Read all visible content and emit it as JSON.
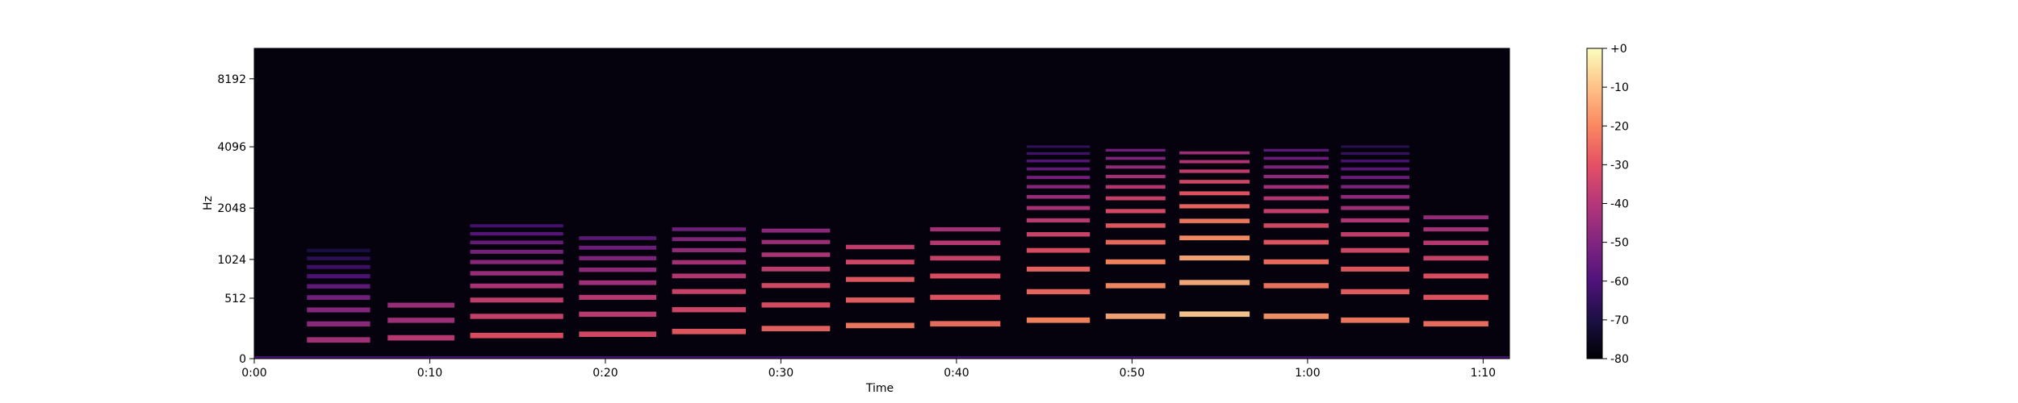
{
  "chart_data": {
    "type": "heatmap",
    "title": "",
    "xlabel": "Time",
    "ylabel": "Hz",
    "xlim": [
      0,
      71.5
    ],
    "ylim": [
      0,
      11025
    ],
    "y_scale": "mel",
    "x_ticks": [
      {
        "value": 0,
        "label": "0:00"
      },
      {
        "value": 10,
        "label": "0:10"
      },
      {
        "value": 20,
        "label": "0:20"
      },
      {
        "value": 30,
        "label": "0:30"
      },
      {
        "value": 40,
        "label": "0:40"
      },
      {
        "value": 50,
        "label": "0:50"
      },
      {
        "value": 60,
        "label": "1:00"
      },
      {
        "value": 70,
        "label": "1:10"
      }
    ],
    "y_ticks": [
      {
        "value": 0,
        "label": "0"
      },
      {
        "value": 512,
        "label": "512"
      },
      {
        "value": 1024,
        "label": "1024"
      },
      {
        "value": 2048,
        "label": "2048"
      },
      {
        "value": 4096,
        "label": "4096"
      },
      {
        "value": 8192,
        "label": "8192"
      }
    ],
    "colorbar": {
      "colormap": "magma",
      "range": [
        -80,
        0
      ],
      "ticks": [
        {
          "value": 0,
          "label": "+0"
        },
        {
          "value": -10,
          "label": "-10"
        },
        {
          "value": -20,
          "label": "-20"
        },
        {
          "value": -30,
          "label": "-30"
        },
        {
          "value": -40,
          "label": "-40"
        },
        {
          "value": -50,
          "label": "-50"
        },
        {
          "value": -60,
          "label": "-60"
        },
        {
          "value": -70,
          "label": "-70"
        },
        {
          "value": -80,
          "label": "-80"
        }
      ]
    },
    "notes": [
      {
        "t0": 3.0,
        "t1": 6.6,
        "f0": 130,
        "harmonics": 12,
        "peak_db": -42
      },
      {
        "t0": 7.6,
        "t1": 11.4,
        "f0": 146,
        "harmonics": 3,
        "peak_db": -38
      },
      {
        "t0": 12.3,
        "t1": 17.6,
        "f0": 164,
        "harmonics": 10,
        "peak_db": -30
      },
      {
        "t0": 18.5,
        "t1": 22.9,
        "f0": 174,
        "harmonics": 8,
        "peak_db": -32
      },
      {
        "t0": 23.8,
        "t1": 28.0,
        "f0": 196,
        "harmonics": 8,
        "peak_db": -28
      },
      {
        "t0": 28.9,
        "t1": 32.8,
        "f0": 220,
        "harmonics": 7,
        "peak_db": -26
      },
      {
        "t0": 33.7,
        "t1": 37.6,
        "f0": 246,
        "harmonics": 5,
        "peak_db": -22
      },
      {
        "t0": 38.5,
        "t1": 42.5,
        "f0": 261,
        "harmonics": 6,
        "peak_db": -24
      },
      {
        "t0": 44.0,
        "t1": 47.6,
        "f0": 293,
        "harmonics": 14,
        "peak_db": -20
      },
      {
        "t0": 48.5,
        "t1": 51.9,
        "f0": 329,
        "harmonics": 12,
        "peak_db": -14
      },
      {
        "t0": 52.7,
        "t1": 56.7,
        "f0": 349,
        "harmonics": 11,
        "peak_db": -8
      },
      {
        "t0": 57.5,
        "t1": 61.2,
        "f0": 329,
        "harmonics": 12,
        "peak_db": -18
      },
      {
        "t0": 61.9,
        "t1": 65.8,
        "f0": 293,
        "harmonics": 14,
        "peak_db": -22
      },
      {
        "t0": 66.6,
        "t1": 70.3,
        "f0": 261,
        "harmonics": 7,
        "peak_db": -24
      }
    ]
  }
}
